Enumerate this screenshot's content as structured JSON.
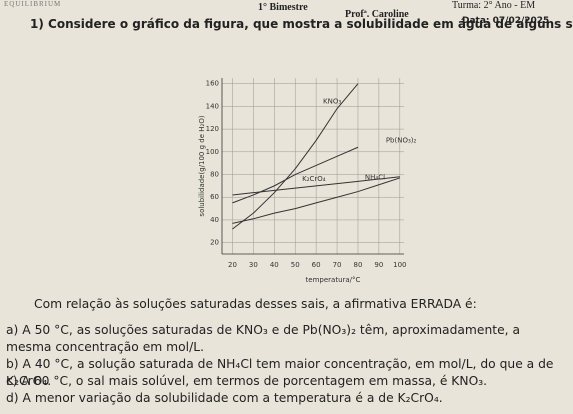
{
  "header": {
    "logo": "EQUILIBRIUM",
    "term": "1° Bimestre",
    "teacher": "Profª. Caroline",
    "class": "Turma: 2° Ano - EM",
    "date": "Data: 07/02/2025"
  },
  "question": {
    "number": "1)",
    "text": "Considere o gráfico da figura, que mostra a solubilidade em água de alguns sais, em função da temperatura."
  },
  "chart_data": {
    "type": "line",
    "xlabel": "temperatura/°C",
    "ylabel": "solubilidade(g/100 g de H₂O)",
    "x": [
      20,
      30,
      40,
      50,
      60,
      70,
      80,
      90,
      100
    ],
    "series": [
      {
        "name": "KNO₃",
        "color": "#333333",
        "values": [
          32,
          46,
          64,
          85,
          110,
          138,
          160,
          null,
          null
        ]
      },
      {
        "name": "Pb(NO₃)₂",
        "color": "#333333",
        "values": [
          55,
          62,
          70,
          80,
          88,
          96,
          104,
          null,
          null
        ]
      },
      {
        "name": "K₂CrO₄",
        "color": "#333333",
        "values": [
          62,
          64,
          66,
          68,
          70,
          72,
          74,
          76,
          78
        ]
      },
      {
        "name": "NH₄Cl",
        "color": "#333333",
        "values": [
          37,
          41,
          46,
          50,
          55,
          60,
          65,
          71,
          77
        ]
      }
    ],
    "xlim": [
      15,
      102
    ],
    "ylim": [
      10,
      165
    ],
    "xticks": [
      20,
      30,
      40,
      50,
      60,
      70,
      80,
      90,
      100
    ],
    "yticks": [
      20,
      40,
      60,
      80,
      100,
      120,
      140,
      160
    ],
    "grid": true
  },
  "prompt": "Com relação às soluções saturadas desses sais, a afirmativa ERRADA é:",
  "options": [
    {
      "letter": "a)",
      "text": "A 50 °C, as soluções saturadas de KNO₃ e de Pb(NO₃)₂ têm, aproximadamente, a mesma concentração em mol/L."
    },
    {
      "letter": "b)",
      "text": "A 40 °C, a solução saturada de NH₄Cl tem maior concentração, em mol/L, do que a de K₂CrO₄."
    },
    {
      "letter": "c)",
      "text": "A 60 °C, o sal mais solúvel, em termos de porcentagem em massa, é KNO₃."
    },
    {
      "letter": "d)",
      "text": "A menor variação da solubilidade com a temperatura é a de K₂CrO₄."
    }
  ]
}
